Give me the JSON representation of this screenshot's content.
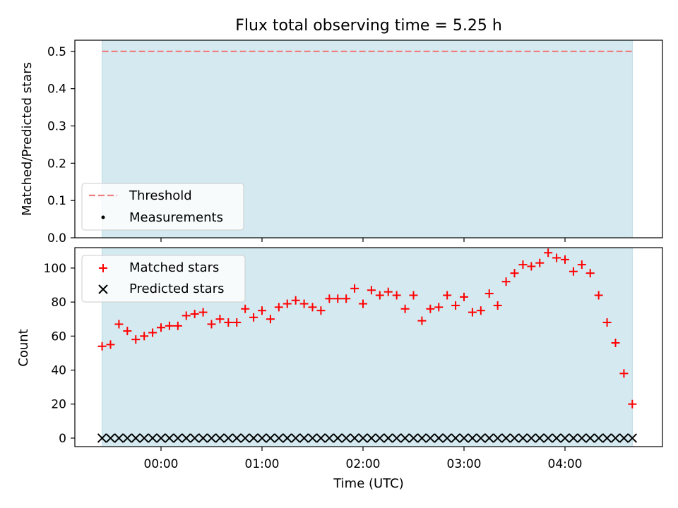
{
  "chart_data": [
    {
      "type": "line",
      "title": "Flux total observing time = 5.25 h",
      "xlabel": "",
      "ylabel": "Matched/Predicted stars",
      "ylim": [
        0,
        0.53
      ],
      "y_ticks": [
        "0.0",
        "0.1",
        "0.2",
        "0.3",
        "0.4",
        "0.5"
      ],
      "threshold": 0.5,
      "observing_window": [
        "-00:35",
        "04:40"
      ],
      "series": [
        {
          "name": "Threshold",
          "style": "dashed-line",
          "color": "#f08080",
          "values": [
            0.5,
            0.5
          ]
        },
        {
          "name": "Measurements",
          "style": "dot",
          "color": "#000000",
          "values": []
        }
      ],
      "legend_position": "lower-left",
      "grid": false,
      "shaded_color": "#d4eaf0"
    },
    {
      "type": "scatter",
      "xlabel": "Time (UTC)",
      "ylabel": "Count",
      "ylim": [
        -5,
        112
      ],
      "y_ticks": [
        "0",
        "20",
        "40",
        "60",
        "80",
        "100"
      ],
      "x_ticks": [
        "00:00",
        "01:00",
        "02:00",
        "03:00",
        "04:00"
      ],
      "legend_position": "upper-left",
      "grid": false,
      "x_minutes": [
        -35,
        -30,
        -25,
        -20,
        -15,
        -10,
        -5,
        0,
        5,
        10,
        15,
        20,
        25,
        30,
        35,
        40,
        45,
        50,
        55,
        60,
        65,
        70,
        75,
        80,
        85,
        90,
        95,
        100,
        105,
        110,
        115,
        120,
        125,
        130,
        135,
        140,
        145,
        150,
        155,
        160,
        165,
        170,
        175,
        180,
        185,
        190,
        195,
        200,
        205,
        210,
        215,
        220,
        225,
        230,
        235,
        240,
        245,
        250,
        255,
        260,
        265,
        270,
        275,
        280
      ],
      "series": [
        {
          "name": "Matched stars",
          "marker": "plus",
          "color": "#ff0000",
          "values": [
            54,
            55,
            67,
            63,
            58,
            60,
            62,
            65,
            66,
            66,
            72,
            73,
            74,
            67,
            70,
            68,
            68,
            76,
            71,
            75,
            70,
            77,
            79,
            81,
            79,
            77,
            75,
            82,
            82,
            82,
            88,
            79,
            87,
            84,
            86,
            84,
            76,
            84,
            69,
            76,
            77,
            84,
            78,
            83,
            74,
            75,
            85,
            78,
            92,
            97,
            102,
            101,
            103,
            109,
            106,
            105,
            98,
            102,
            97,
            84,
            68,
            56,
            38,
            20
          ]
        },
        {
          "name": "Predicted stars",
          "marker": "x",
          "color": "#000000",
          "values": [
            0,
            0,
            0,
            0,
            0,
            0,
            0,
            0,
            0,
            0,
            0,
            0,
            0,
            0,
            0,
            0,
            0,
            0,
            0,
            0,
            0,
            0,
            0,
            0,
            0,
            0,
            0,
            0,
            0,
            0,
            0,
            0,
            0,
            0,
            0,
            0,
            0,
            0,
            0,
            0,
            0,
            0,
            0,
            0,
            0,
            0,
            0,
            0,
            0,
            0,
            0,
            0,
            0,
            0,
            0,
            0,
            0,
            0,
            0,
            0,
            0,
            0,
            0,
            0
          ]
        }
      ]
    }
  ]
}
